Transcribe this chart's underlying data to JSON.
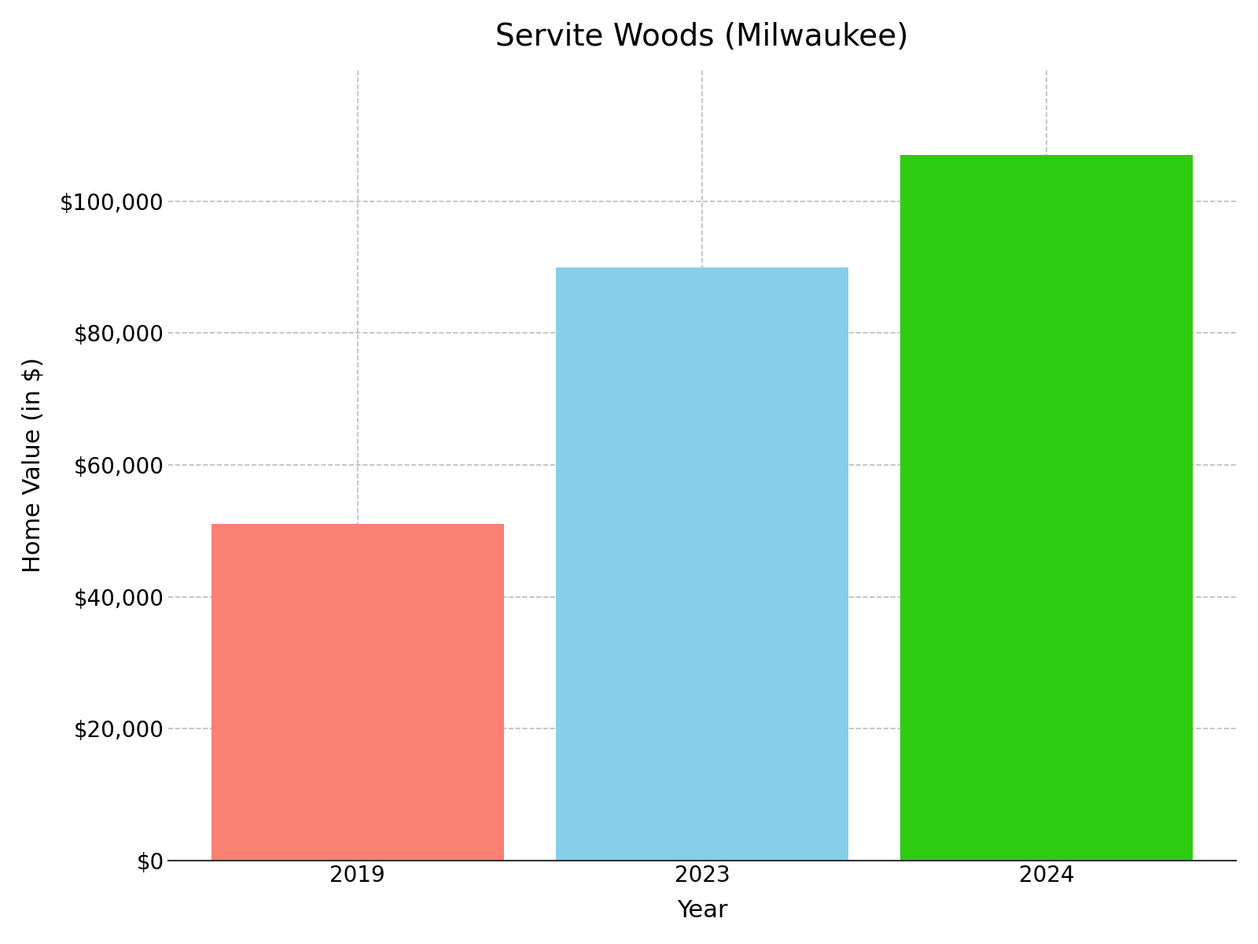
{
  "title": "Servite Woods (Milwaukee)",
  "xlabel": "Year",
  "ylabel": "Home Value (in $)",
  "categories": [
    "2019",
    "2023",
    "2024"
  ],
  "values": [
    51000,
    90000,
    107000
  ],
  "bar_colors": [
    "#FA8072",
    "#87CEEB",
    "#2ECC11"
  ],
  "ylim": [
    0,
    120000
  ],
  "yticks": [
    0,
    20000,
    40000,
    60000,
    80000,
    100000
  ],
  "title_fontsize": 28,
  "axis_label_fontsize": 22,
  "tick_fontsize": 20,
  "bar_width": 0.85,
  "background_color": "#ffffff",
  "grid_color": "#bbbbbb",
  "grid_linestyle": "--",
  "grid_linewidth": 1.2,
  "spine_color": "#333333"
}
